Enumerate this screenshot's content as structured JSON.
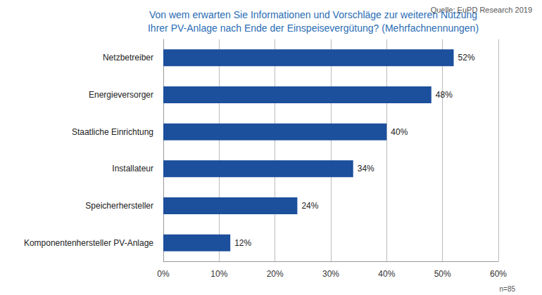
{
  "chart_data": {
    "type": "bar",
    "title": "Von wem erwarten Sie Informationen und Vorschläge zur weiteren Nutzung\nIhrer PV-Anlage nach Ende der Einspeisevergütung? (Mehrfachnennungen)",
    "annotations": [
      "Quelle: EuPD Research 2019",
      "n=85"
    ],
    "orientation": "horizontal",
    "categories": [
      "Netzbetreiber",
      "Energieversorger",
      "Staatliche Einrichtung",
      "Installateur",
      "Speicherhersteller",
      "Komponentenhersteller PV-Anlage"
    ],
    "values": [
      52,
      48,
      40,
      34,
      24,
      12
    ],
    "value_labels": [
      "52%",
      "48%",
      "40%",
      "34%",
      "24%",
      "12%"
    ],
    "data_labels": true,
    "color": "#1c4f9c",
    "xlim": [
      0,
      60
    ],
    "xticks": [
      {
        "value": 0,
        "label": "0%"
      },
      {
        "value": 10,
        "label": "10%"
      },
      {
        "value": 20,
        "label": "20%"
      },
      {
        "value": 30,
        "label": "30%"
      },
      {
        "value": 40,
        "label": "40%"
      },
      {
        "value": 50,
        "label": "50%"
      },
      {
        "value": 60,
        "label": "60%"
      }
    ],
    "grid": true
  }
}
